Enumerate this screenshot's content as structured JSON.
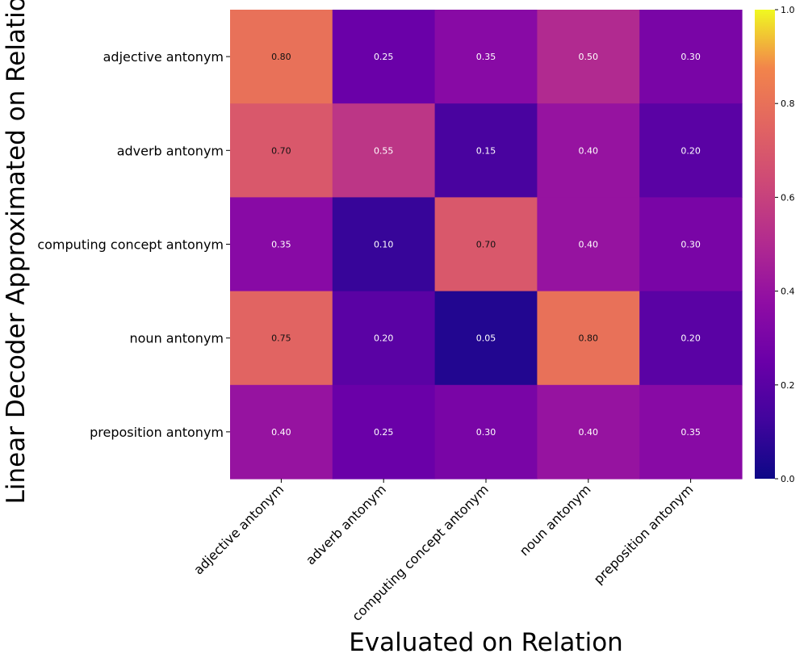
{
  "chart_data": {
    "type": "heatmap",
    "title": "",
    "xlabel": "Evaluated on Relation",
    "ylabel": "Linear Decoder Approximated on Relation",
    "x_categories": [
      "adjective antonym",
      "adverb antonym",
      "computing concept antonym",
      "noun antonym",
      "preposition antonym"
    ],
    "y_categories": [
      "adjective antonym",
      "adverb antonym",
      "computing concept antonym",
      "noun antonym",
      "preposition antonym"
    ],
    "values": [
      [
        0.8,
        0.25,
        0.35,
        0.5,
        0.3
      ],
      [
        0.7,
        0.55,
        0.15,
        0.4,
        0.2
      ],
      [
        0.35,
        0.1,
        0.7,
        0.4,
        0.3
      ],
      [
        0.75,
        0.2,
        0.05,
        0.8,
        0.2
      ],
      [
        0.4,
        0.25,
        0.3,
        0.4,
        0.35
      ]
    ],
    "value_labels": [
      [
        "0.80",
        "0.25",
        "0.35",
        "0.50",
        "0.30"
      ],
      [
        "0.70",
        "0.55",
        "0.15",
        "0.40",
        "0.20"
      ],
      [
        "0.35",
        "0.10",
        "0.70",
        "0.40",
        "0.30"
      ],
      [
        "0.75",
        "0.20",
        "0.05",
        "0.80",
        "0.20"
      ],
      [
        "0.40",
        "0.25",
        "0.30",
        "0.40",
        "0.35"
      ]
    ],
    "colormap": "plasma",
    "vmin": 0.0,
    "vmax": 1.0,
    "colorbar_ticks": [
      0.0,
      0.2,
      0.4,
      0.6,
      0.8,
      1.0
    ],
    "colorbar_tick_labels": [
      "0.0",
      "0.2",
      "0.4",
      "0.6",
      "0.8",
      "1.0"
    ]
  }
}
